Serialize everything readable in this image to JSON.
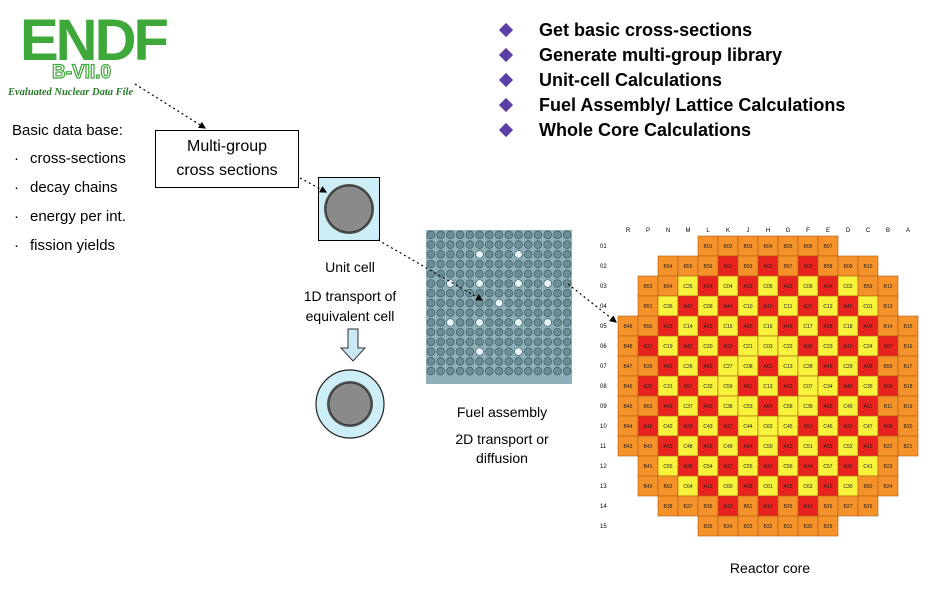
{
  "logo": {
    "main": "ENDF",
    "version": "B-VII.0",
    "subtitle": "Evaluated Nuclear Data File"
  },
  "database": {
    "title": "Basic data base:",
    "items": [
      "cross-sections",
      "decay chains",
      "energy per int.",
      "fission yields"
    ]
  },
  "multigroup": {
    "line1": "Multi-group",
    "line2": "cross sections"
  },
  "steps": [
    "Get basic cross-sections",
    "Generate multi-group library",
    "Unit-cell Calculations",
    "Fuel Assembly/ Lattice Calculations",
    "Whole Core Calculations"
  ],
  "unit_cell": {
    "label": "Unit cell",
    "desc1": "1D transport of",
    "desc2": "equivalent cell"
  },
  "fuel_assembly": {
    "label": "Fuel assembly",
    "desc1": "2D  transport or",
    "desc2": "diffusion"
  },
  "reactor_core": {
    "label": "Reactor core",
    "columns": [
      "R",
      "P",
      "N",
      "M",
      "L",
      "K",
      "J",
      "H",
      "G",
      "F",
      "E",
      "D",
      "C",
      "B",
      "A"
    ],
    "rows": [
      "01",
      "02",
      "03",
      "04",
      "05",
      "06",
      "07",
      "08",
      "09",
      "10",
      "11",
      "12",
      "13",
      "14",
      "15"
    ],
    "grid": [
      [
        "",
        "",
        "",
        "",
        "B01",
        "B02",
        "B03",
        "B04",
        "B05",
        "B06",
        "B07",
        "",
        "",
        "",
        ""
      ],
      [
        "",
        "",
        "B54",
        "B55",
        "B56",
        "A01",
        "B53",
        "A02",
        "B57",
        "A03",
        "B58",
        "B09",
        "B10",
        "",
        ""
      ],
      [
        "",
        "B53",
        "B64",
        "C25",
        "A24",
        "C04",
        "A25",
        "C05",
        "A26",
        "C06",
        "A04",
        "C02",
        "B59",
        "B12",
        ""
      ],
      [
        "",
        "B51",
        "C36",
        "A47",
        "C09",
        "A44",
        "C10",
        "A19",
        "C11",
        "A27",
        "C12",
        "A45",
        "C01",
        "B13",
        ""
      ],
      [
        "B49",
        "B50",
        "A23",
        "C14",
        "A62",
        "C15",
        "A60",
        "C16",
        "A46",
        "C17",
        "A28",
        "C18",
        "A06",
        "B14",
        "B15"
      ],
      [
        "B48",
        "A21",
        "C19",
        "A42",
        "C20",
        "A33",
        "C21",
        "C03",
        "C22",
        "A35",
        "C23",
        "A19",
        "C24",
        "A07",
        "B16"
      ],
      [
        "B47",
        "B39",
        "A41",
        "C26",
        "A59",
        "C27",
        "C08",
        "A62",
        "C13",
        "C28",
        "A48",
        "C29",
        "A08",
        "B59",
        "B17"
      ],
      [
        "B46",
        "A20",
        "C31",
        "A57",
        "C32",
        "C59",
        "A61",
        "C13",
        "A63",
        "C07",
        "C34",
        "A49",
        "C35",
        "A09",
        "B18"
      ],
      [
        "B45",
        "B63",
        "A40",
        "C37",
        "A56",
        "C38",
        "C53",
        "A64",
        "C58",
        "C39",
        "A50",
        "C40",
        "A51",
        "B11",
        "B19"
      ],
      [
        "B44",
        "A18",
        "C42",
        "A39",
        "C43",
        "A37",
        "C44",
        "C62",
        "C45",
        "A51",
        "C46",
        "A32",
        "C47",
        "A08",
        "B20"
      ],
      [
        "B43",
        "B42",
        "A53",
        "C48",
        "A58",
        "C49",
        "A54",
        "C50",
        "A52",
        "C51",
        "A53",
        "C52",
        "A10",
        "B22",
        "B21"
      ],
      [
        "",
        "B41",
        "C65",
        "A38",
        "C54",
        "A37",
        "C55",
        "A31",
        "C56",
        "A34",
        "C57",
        "A30",
        "C41",
        "B23",
        ""
      ],
      [
        "",
        "B40",
        "B62",
        "C64",
        "A16",
        "C60",
        "A36",
        "C61",
        "A35",
        "C62",
        "A12",
        "C30",
        "B60",
        "B24",
        ""
      ],
      [
        "",
        "",
        "B38",
        "B37",
        "B36",
        "A15",
        "B61",
        "A14",
        "B25",
        "A13",
        "B26",
        "B27",
        "B26",
        "",
        ""
      ],
      [
        "",
        "",
        "",
        "",
        "B35",
        "B34",
        "B33",
        "B32",
        "B31",
        "B30",
        "B29",
        "",
        "",
        "",
        ""
      ]
    ],
    "colors": {
      "orange": "#f5922a",
      "red": "#e8231f",
      "yellow": "#f7f23a",
      "border": "#b06010"
    }
  },
  "colors": {
    "logo_green": "#3fa83a",
    "bullet": "#5b3fa6",
    "cell_fill": "#cdeef7",
    "arrow_fill": "#c9e9f4"
  }
}
